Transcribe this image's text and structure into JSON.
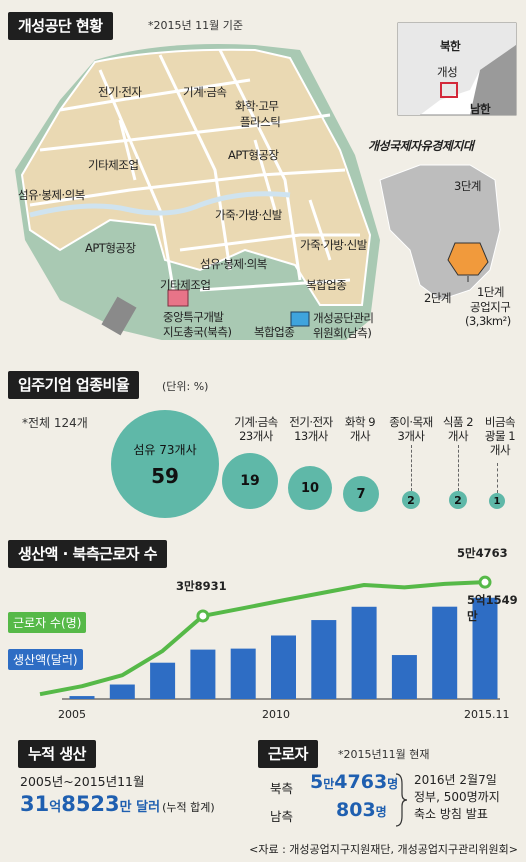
{
  "header": {
    "title": "개성공단 현황",
    "note": "*2015년 11월 기준"
  },
  "map": {
    "labels": {
      "elec": "전기·전자",
      "machine": "기계·금속",
      "chem1": "화학·고무",
      "chem2": "플라스틱",
      "other1": "기타제조업",
      "apt1": "APT형공장",
      "fiber1": "섬유·봉제·의복",
      "leather1": "가죽·가방·신발",
      "apt2": "APT형공장",
      "leather2": "가죽·가방·신발",
      "fiber2": "섬유·봉제·의복",
      "other2": "기타제조업",
      "complex1": "복합업종",
      "hq1": "중앙특구개발",
      "hq2": "지도총국(북측)",
      "committee1": "개성공단관리",
      "committee2": "위원회(남측)",
      "complex2": "복합업종"
    },
    "inset": {
      "north": "북한",
      "kaesong": "개성",
      "south": "남한"
    },
    "zone": {
      "title": "개성국제자유경제지대",
      "stage3": "3단계",
      "stage2": "2단계",
      "stage1a": "1단계",
      "stage1b": "공업지구",
      "area": "(3,3km²)"
    }
  },
  "industry": {
    "title": "입주기업 업종비율",
    "unit": "(단위: %)",
    "total": "*전체 124개",
    "items": [
      {
        "name": "섬유 73개사",
        "value": "59"
      },
      {
        "name": "기계·금속 23개사",
        "value": "19"
      },
      {
        "name": "전기·전자 13개사",
        "value": "10"
      },
      {
        "name": "화학 9개사",
        "value": "7"
      },
      {
        "name": "종이·목재 3개사",
        "value": "2"
      },
      {
        "name": "식품 2개사",
        "value": "2"
      },
      {
        "name": "비금속 광물 1개사",
        "value": "1"
      }
    ]
  },
  "production": {
    "title": "생산액 · 북측근로자 수",
    "legend_workers": "근로자 수(명)",
    "legend_output": "생산액(달러)",
    "label_2008": "3만8931",
    "label_2015_workers": "5만4763",
    "label_2015_output": "5억1549만",
    "xticks": [
      "2005",
      "2010",
      "2015.11"
    ]
  },
  "chart_data": {
    "type": "bar",
    "categories": [
      "2005",
      "2006",
      "2007",
      "2008",
      "2009",
      "2010",
      "2011",
      "2012",
      "2013",
      "2014",
      "2015.11"
    ],
    "series": [
      {
        "name": "생산액(달러)",
        "type": "bar",
        "values": [
          1491,
          7373,
          18478,
          25142,
          25648,
          32332,
          40185,
          46950,
          22378,
          46997,
          51549
        ]
      },
      {
        "name": "근로자 수(명)",
        "type": "line",
        "values": [
          6013,
          11160,
          22538,
          38931,
          42561,
          46284,
          49866,
          53448,
          52329,
          53947,
          54763
        ]
      }
    ],
    "ylim_bar": [
      0,
      56000
    ],
    "ylim_line": [
      0,
      60000
    ]
  },
  "cumulative": {
    "title": "누적 생산",
    "period": "2005년~2015년11월",
    "amount_a": "31",
    "amount_b": "억",
    "amount_c": "8523",
    "amount_d": "만 달러",
    "amount_e": "(누적 합계)"
  },
  "workers": {
    "title": "근로자",
    "note": "*2015년11월 현재",
    "north_label": "북측",
    "north_a": "5",
    "north_b": "만",
    "north_c": "4763",
    "north_d": "명",
    "south_label": "남측",
    "south_a": "803",
    "south_d": "명",
    "plan1": "2016년 2월7일",
    "plan2": "정부, 500명까지",
    "plan3": "축소 방침 발표"
  },
  "source": "<자료 : 개성공업지구지원재단, 개성공업지구관리위원회>",
  "colors": {
    "bar": "#2e6dc4",
    "line": "#56b948",
    "bubble": "#5fb8a8",
    "map_block": "#ead9b3"
  }
}
